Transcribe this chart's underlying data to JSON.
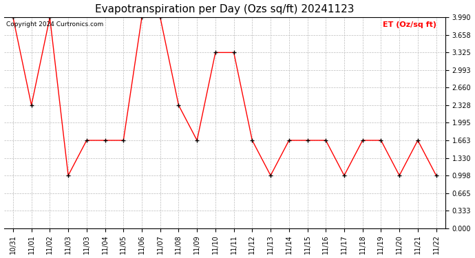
{
  "title": "Evapotranspiration per Day (Ozs sq/ft) 20241123",
  "copyright": "Copyright 2024 Curtronics.com",
  "legend_label": "ET (Oz/sq ft)",
  "x_labels": [
    "10/31",
    "11/01",
    "11/02",
    "11/03",
    "11/03",
    "11/04",
    "11/05",
    "11/06",
    "11/07",
    "11/08",
    "11/09",
    "11/10",
    "11/11",
    "11/12",
    "11/13",
    "11/14",
    "11/15",
    "11/16",
    "11/17",
    "11/18",
    "11/19",
    "11/20",
    "11/21",
    "11/22"
  ],
  "y_values": [
    3.99,
    2.328,
    3.99,
    0.998,
    1.663,
    1.663,
    1.663,
    3.99,
    3.99,
    2.328,
    1.663,
    3.325,
    3.325,
    1.663,
    0.998,
    1.663,
    1.663,
    1.663,
    0.998,
    1.663,
    1.663,
    0.998,
    1.663,
    0.998
  ],
  "line_color": "red",
  "marker_color": "black",
  "background_color": "#ffffff",
  "grid_color": "#bbbbbb",
  "ylim_min": 0.0,
  "ylim_max": 3.99,
  "yticks": [
    0.0,
    0.333,
    0.665,
    0.998,
    1.33,
    1.663,
    1.995,
    2.328,
    2.66,
    2.993,
    3.325,
    3.658,
    3.99
  ],
  "title_fontsize": 11,
  "tick_fontsize": 7,
  "legend_fontsize": 8,
  "copyright_fontsize": 6.5
}
